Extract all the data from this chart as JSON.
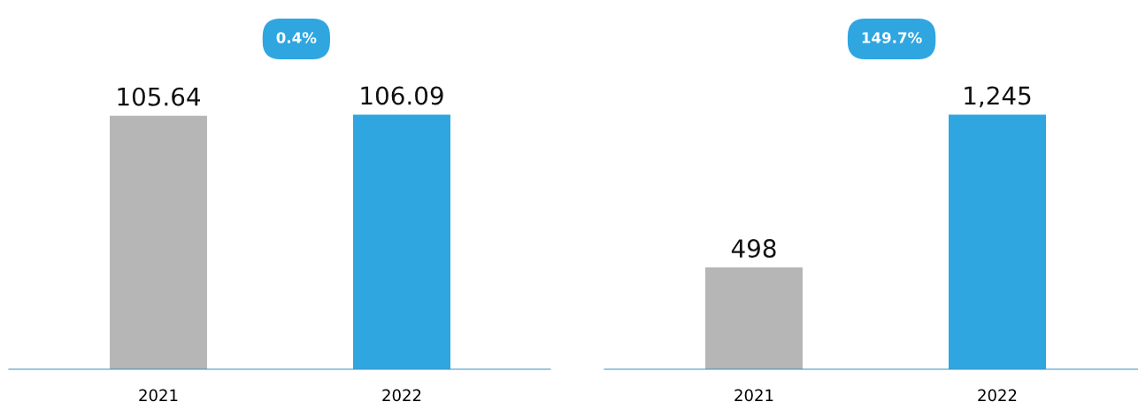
{
  "chart_data": [
    {
      "type": "bar",
      "categories": [
        "2021",
        "2022"
      ],
      "colors": [
        "#b5b6b5",
        "#2fa6e0"
      ],
      "values": [
        105.64,
        106.09
      ],
      "value_labels": [
        "105.64",
        "106.09"
      ],
      "tick_labels": "x",
      "annotations": [
        {
          "text": "0.4%"
        }
      ]
    },
    {
      "type": "bar",
      "categories": [
        "2021",
        "2022"
      ],
      "colors": [
        "#b5b6b5",
        "#2fa6e0"
      ],
      "values": [
        498,
        1245
      ],
      "value_labels": [
        "498",
        "1,245"
      ],
      "tick_labels": "x",
      "annotations": [
        {
          "text": "149.7%"
        }
      ]
    }
  ]
}
